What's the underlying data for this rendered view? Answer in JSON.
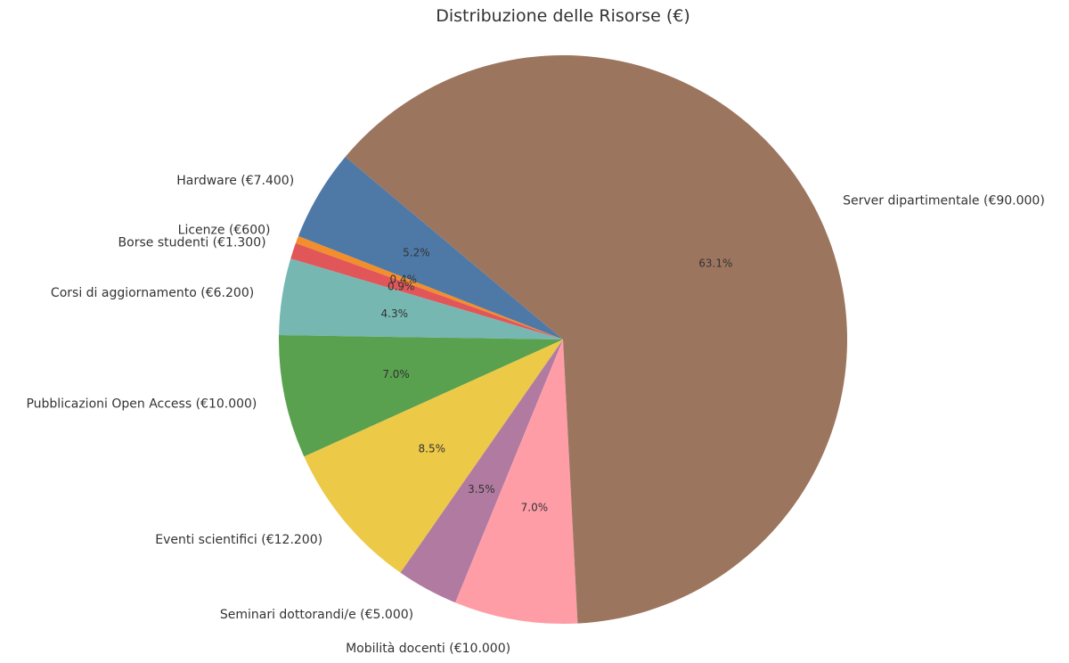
{
  "chart_data": {
    "type": "pie",
    "title": "Distribuzione delle Risorse (€)",
    "slices": [
      {
        "category": "Hardware",
        "label": "Hardware (€7.400)",
        "value": 7400,
        "pct": "5.2%",
        "color": "#4e79a7"
      },
      {
        "category": "Licenze",
        "label": "Licenze (€600)",
        "value": 600,
        "pct": "0.4%",
        "color": "#f28e2b"
      },
      {
        "category": "Borse studenti",
        "label": "Borse studenti (€1.300)",
        "value": 1300,
        "pct": "0.9%",
        "color": "#e15759"
      },
      {
        "category": "Corsi di aggiornamento",
        "label": "Corsi di aggiornamento (€6.200)",
        "value": 6200,
        "pct": "4.3%",
        "color": "#76b7b2"
      },
      {
        "category": "Pubblicazioni Open Access",
        "label": "Pubblicazioni Open Access (€10.000)",
        "value": 10000,
        "pct": "7.0%",
        "color": "#59a14f"
      },
      {
        "category": "Eventi scientifici",
        "label": "Eventi scientifici (€12.200)",
        "value": 12200,
        "pct": "8.5%",
        "color": "#edc948"
      },
      {
        "category": "Seminari dottorandi/e",
        "label": "Seminari dottorandi/e (€5.000)",
        "value": 5000,
        "pct": "3.5%",
        "color": "#b07aa1"
      },
      {
        "category": "Mobilità docenti",
        "label": "Mobilità docenti (€10.000)",
        "value": 10000,
        "pct": "7.0%",
        "color": "#ff9da7"
      },
      {
        "category": "Server dipartimentale",
        "label": "Server dipartimentale (€90.000)",
        "value": 90000,
        "pct": "63.1%",
        "color": "#9c755f"
      }
    ],
    "start_angle_deg": 140,
    "direction": "counterclockwise",
    "legend": "none"
  }
}
